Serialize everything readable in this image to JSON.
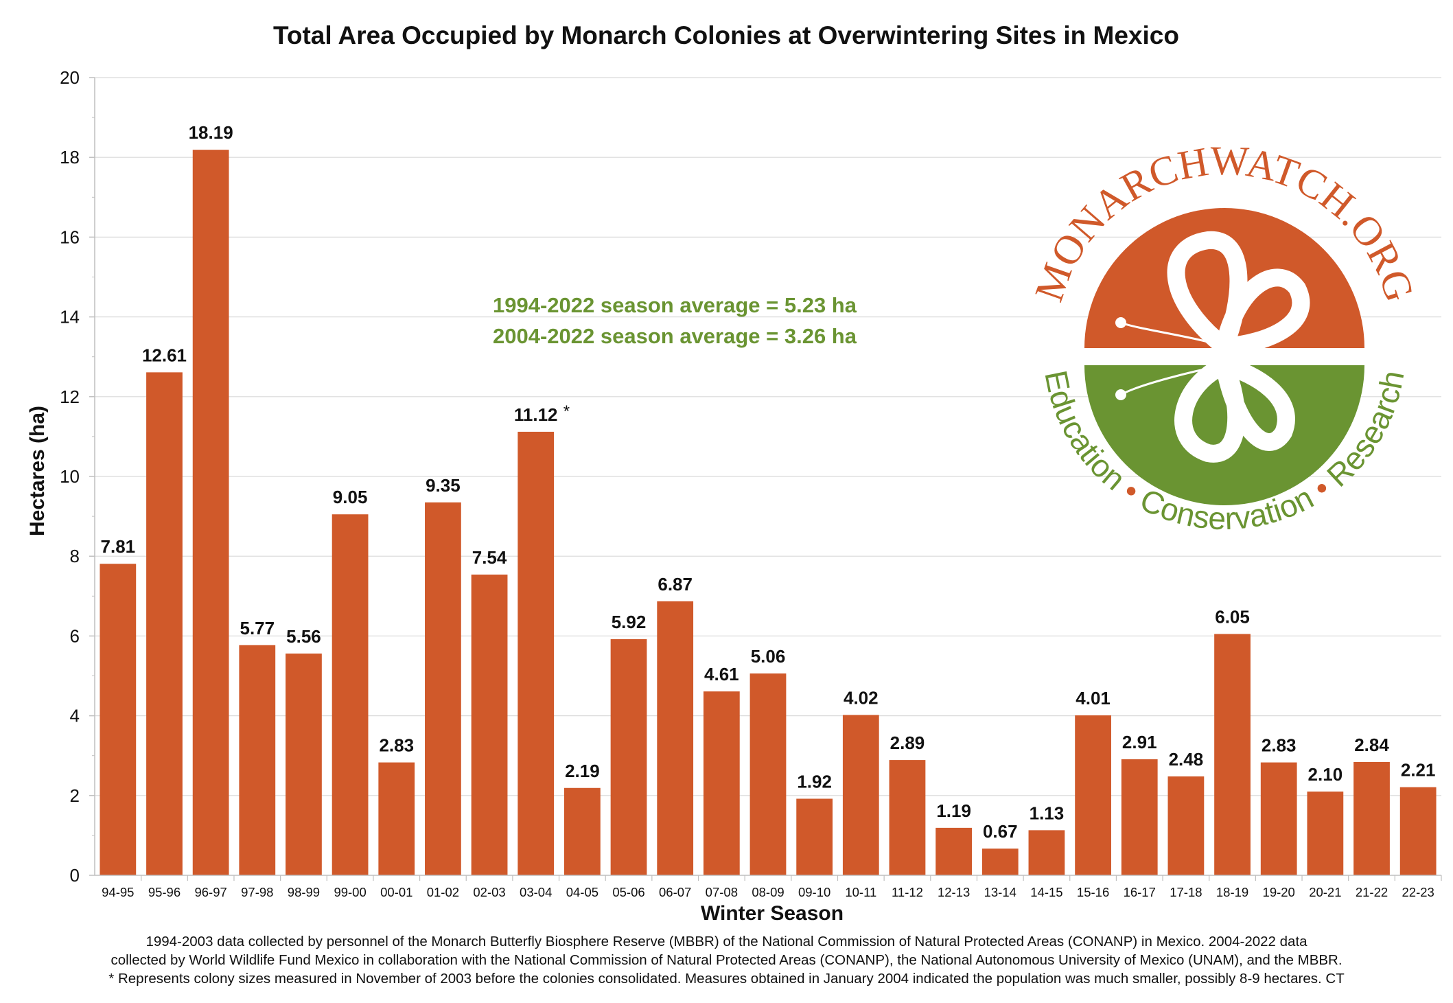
{
  "chart_data": {
    "type": "bar",
    "title": "Total Area Occupied by Monarch Colonies at Overwintering Sites in Mexico",
    "xlabel": "Winter Season",
    "ylabel": "Hectares (ha)",
    "ylim": [
      0,
      20
    ],
    "yticks": [
      0,
      2,
      4,
      6,
      8,
      10,
      12,
      14,
      16,
      18,
      20
    ],
    "grid": true,
    "bar_color": "#d0592a",
    "categories": [
      "94-95",
      "95-96",
      "96-97",
      "97-98",
      "98-99",
      "99-00",
      "00-01",
      "01-02",
      "02-03",
      "03-04",
      "04-05",
      "05-06",
      "06-07",
      "07-08",
      "08-09",
      "09-10",
      "10-11",
      "11-12",
      "12-13",
      "13-14",
      "14-15",
      "15-16",
      "16-17",
      "17-18",
      "18-19",
      "19-20",
      "20-21",
      "21-22",
      "22-23"
    ],
    "values": [
      7.81,
      12.61,
      18.19,
      5.77,
      5.56,
      9.05,
      2.83,
      9.35,
      7.54,
      11.12,
      2.19,
      5.92,
      6.87,
      4.61,
      5.06,
      1.92,
      4.02,
      2.89,
      1.19,
      0.67,
      1.13,
      4.01,
      2.91,
      2.48,
      6.05,
      2.83,
      2.1,
      2.84,
      2.21
    ],
    "labels": [
      "7.81",
      "12.61",
      "18.19",
      "5.77",
      "5.56",
      "9.05",
      "2.83",
      "9.35",
      "7.54",
      "11.12",
      "2.19",
      "5.92",
      "6.87",
      "4.61",
      "5.06",
      "1.92",
      "4.02",
      "2.89",
      "1.19",
      "0.67",
      "1.13",
      "4.01",
      "2.91",
      "2.48",
      "6.05",
      "2.83",
      "2.10",
      "2.84",
      "2.21"
    ],
    "asterisk_category": "03-04",
    "asterisk": "*",
    "annotations": [
      "1994-2022 season average = 5.23 ha",
      "2004-2022 season average = 3.26 ha"
    ],
    "annotation_color": "#6a9432"
  },
  "logo": {
    "top_text": "MONARCHWATCH.ORG",
    "bottom_words": [
      "Education",
      "Conservation",
      "Research"
    ],
    "separator": "•",
    "orange": "#d0592a",
    "green": "#6a9432"
  },
  "footnote": {
    "line1": "1994-2003 data collected by personnel of the Monarch Butterfly Biosphere Reserve (MBBR) of the National Commission of Natural Protected Areas (CONANP) in Mexico. 2004-2022 data",
    "line2": "collected by World Wildlife Fund Mexico in collaboration with the National Commission of Natural Protected Areas (CONANP), the National Autonomous University of Mexico (UNAM), and the MBBR.",
    "line3": "* Represents colony sizes measured in November of 2003 before the colonies consolidated. Measures obtained in January 2004 indicated the population was much smaller, possibly 8-9 hectares. CT"
  }
}
